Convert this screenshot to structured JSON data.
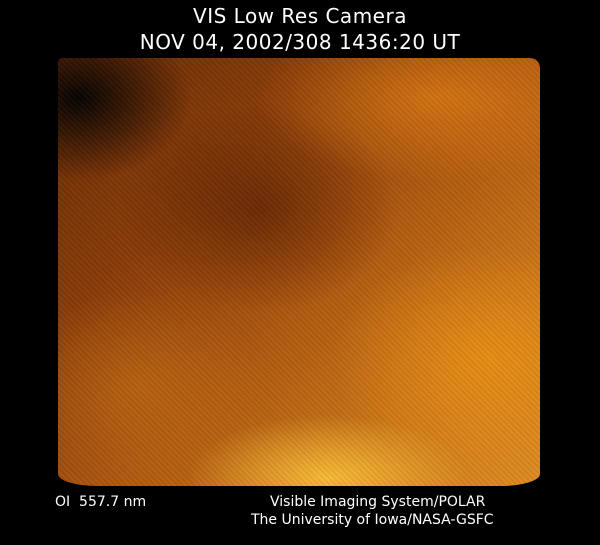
{
  "header": {
    "title": "VIS Low Res Camera",
    "timestamp": "NOV 04, 2002/308 1436:20 UT"
  },
  "image": {
    "description_colors": {
      "dark": "#6a2a04",
      "mid": "#b25a10",
      "bright": "#ffc83c"
    }
  },
  "footer": {
    "wavelength": "OI  557.7 nm",
    "instrument": "Visible Imaging System/POLAR",
    "institution": "The University of Iowa/NASA-GSFC"
  }
}
